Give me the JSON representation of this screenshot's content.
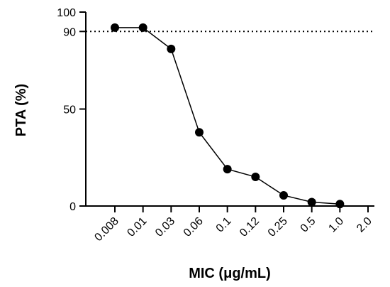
{
  "chart_data": {
    "type": "line",
    "title": "",
    "xlabel": "MIC (μg/mL)",
    "ylabel": "PTA (%)",
    "x_scale": "categorical",
    "categories": [
      "0.008",
      "0.01",
      "0.03",
      "0.06",
      "0.1",
      "0.12",
      "0.25",
      "0.5",
      "1.0",
      "2.0"
    ],
    "series": [
      {
        "values": [
          92,
          92,
          81,
          38,
          19,
          15,
          5.5,
          2,
          1,
          null
        ]
      }
    ],
    "reference_line": {
      "y": 90,
      "style": "dotted"
    },
    "ylim": [
      0,
      100
    ],
    "yticks": [
      "0",
      "50",
      "90",
      "100"
    ],
    "grid": false,
    "legend": "none",
    "marker": "filled-circle",
    "colors": {
      "line": "#000000",
      "marker": "#000000",
      "reference": "#000000"
    }
  }
}
